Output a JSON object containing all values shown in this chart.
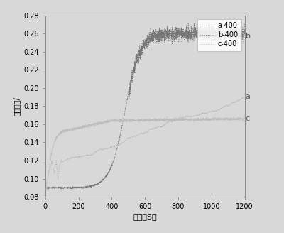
{
  "title": "",
  "xlabel": "时间（S）",
  "ylabel": "摩擦系数/",
  "xlim": [
    0,
    1200
  ],
  "ylim": [
    0.08,
    0.28
  ],
  "yticks": [
    0.08,
    0.1,
    0.12,
    0.14,
    0.16,
    0.18,
    0.2,
    0.22,
    0.24,
    0.26,
    0.28
  ],
  "xticks": [
    0,
    200,
    400,
    600,
    800,
    1000,
    1200
  ],
  "legend_labels": [
    "a-400",
    "b-400",
    "c-400"
  ],
  "curve_a_color": "#aaaaaa",
  "curve_b_color": "#777777",
  "curve_c_color": "#bbbbbb",
  "label_color": "#555555",
  "background_color": "#d8d8d8",
  "plot_bg_color": "#d8d8d8",
  "legend_fontsize": 7,
  "tick_fontsize": 7,
  "xlabel_fontsize": 8,
  "ylabel_fontsize": 7,
  "annotation_fontsize": 8
}
